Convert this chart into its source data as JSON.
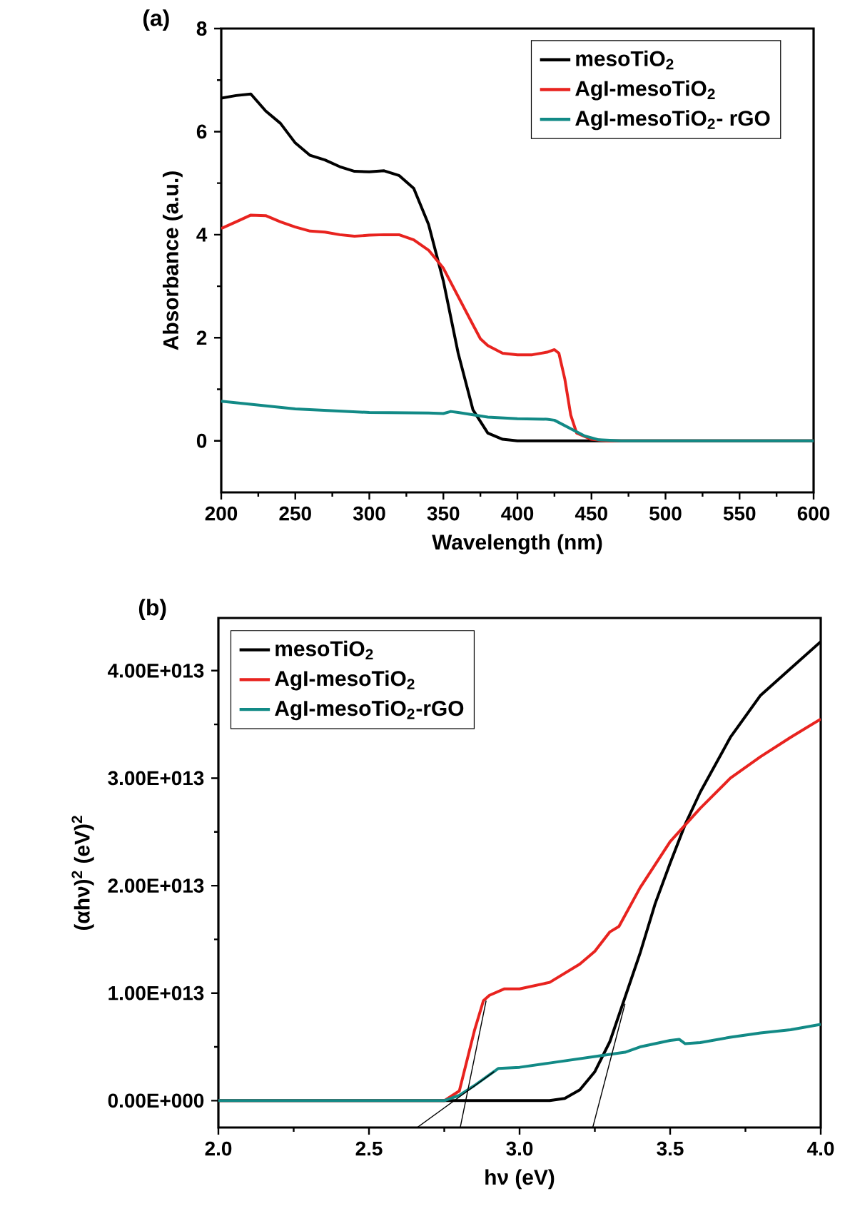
{
  "chart_data": [
    {
      "type": "line",
      "title": "(a)",
      "xlabel": "Wavelength (nm)",
      "ylabel": "Absorbance (a.u.)",
      "xlim": [
        200,
        600
      ],
      "xticks": [
        200,
        250,
        300,
        350,
        400,
        450,
        500,
        550,
        600
      ],
      "ylim": [
        -1,
        8
      ],
      "yticks": [
        0,
        2,
        4,
        6,
        8
      ],
      "legend": "top right",
      "grid": false,
      "marker": "none",
      "line_style": "solid",
      "series": [
        {
          "name": "mesoTiO$_{2}$",
          "color": "#000000",
          "x": [
            200,
            210,
            220,
            230,
            240,
            250,
            260,
            270,
            280,
            290,
            300,
            310,
            320,
            330,
            340,
            350,
            360,
            370,
            380,
            390,
            400,
            600
          ],
          "values": [
            6.65,
            6.7,
            6.73,
            6.4,
            6.16,
            5.78,
            5.54,
            5.45,
            5.32,
            5.23,
            5.22,
            5.24,
            5.15,
            4.9,
            4.2,
            3.1,
            1.7,
            0.6,
            0.15,
            0.03,
            0,
            0
          ]
        },
        {
          "name": "AgI-mesoTiO$_{2}$",
          "color": "#e8231f",
          "x": [
            200,
            210,
            220,
            230,
            240,
            250,
            260,
            270,
            280,
            290,
            300,
            310,
            320,
            330,
            340,
            350,
            360,
            370,
            375,
            380,
            390,
            400,
            410,
            420,
            425,
            428,
            432,
            436,
            440,
            450,
            460,
            600
          ],
          "values": [
            4.12,
            4.25,
            4.38,
            4.37,
            4.25,
            4.15,
            4.07,
            4.05,
            4.0,
            3.97,
            3.99,
            4.0,
            4.0,
            3.9,
            3.7,
            3.35,
            2.8,
            2.25,
            1.98,
            1.85,
            1.7,
            1.67,
            1.67,
            1.72,
            1.77,
            1.7,
            1.2,
            0.5,
            0.15,
            0.03,
            0,
            0
          ]
        },
        {
          "name": "AgI-mesoTiO$_{2}$- rGO",
          "color": "#128a86",
          "x": [
            200,
            250,
            300,
            340,
            350,
            355,
            360,
            380,
            400,
            420,
            425,
            435,
            445,
            455,
            470,
            600
          ],
          "values": [
            0.77,
            0.62,
            0.55,
            0.54,
            0.53,
            0.57,
            0.55,
            0.46,
            0.43,
            0.42,
            0.4,
            0.25,
            0.1,
            0.02,
            0,
            0
          ]
        }
      ]
    },
    {
      "type": "line",
      "title": "(b)",
      "xlabel": "hν (eV)",
      "ylabel": "(αhν)$^{2}$ (eV)$^{2}$",
      "xlim": [
        2.0,
        4.0
      ],
      "xticks": [
        {
          "value": 2.0,
          "label": "2.0"
        },
        {
          "value": 2.5,
          "label": "2.5"
        },
        {
          "value": 3.0,
          "label": "3.0"
        },
        {
          "value": 3.5,
          "label": "3.5"
        },
        {
          "value": 4.0,
          "label": "4.0"
        }
      ],
      "ylim": [
        -2500000000000.0,
        44900000000000.0
      ],
      "yticks": [
        {
          "value": 0,
          "label": "0.00E+000"
        },
        {
          "value": 10000000000000.0,
          "label": "1.00E+013"
        },
        {
          "value": 20000000000000.0,
          "label": "2.00E+013"
        },
        {
          "value": 30000000000000.0,
          "label": "3.00E+013"
        },
        {
          "value": 40000000000000.0,
          "label": "4.00E+013"
        }
      ],
      "legend": "top left",
      "grid": false,
      "marker": "none",
      "line_style": "solid",
      "series": [
        {
          "name": "mesoTiO$_{2}$",
          "color": "#000000",
          "x": [
            2.0,
            2.8,
            3.1,
            3.15,
            3.2,
            3.25,
            3.3,
            3.35,
            3.4,
            3.45,
            3.5,
            3.55,
            3.6,
            3.7,
            3.8,
            3.9,
            4.0
          ],
          "values": [
            0,
            0,
            0,
            200000000000.0,
            1000000000000.0,
            2700000000000.0,
            5500000000000.0,
            9600000000000.0,
            13700000000000.0,
            18300000000000.0,
            22100000000000.0,
            25700000000000.0,
            28700000000000.0,
            33800000000000.0,
            37700000000000.0,
            40200000000000.0,
            42700000000000.0
          ]
        },
        {
          "name": "AgI-mesoTiO$_{2}$",
          "color": "#e8231f",
          "x": [
            2.0,
            2.75,
            2.8,
            2.85,
            2.88,
            2.9,
            2.95,
            3.0,
            3.1,
            3.2,
            3.25,
            3.3,
            3.33,
            3.4,
            3.5,
            3.6,
            3.7,
            3.8,
            3.9,
            4.0
          ],
          "values": [
            0,
            0,
            900000000000.0,
            6500000000000.0,
            9300000000000.0,
            9800000000000.0,
            10400000000000.0,
            10400000000000.0,
            11000000000000.0,
            12700000000000.0,
            13900000000000.0,
            15700000000000.0,
            16200000000000.0,
            19800000000000.0,
            24100000000000.0,
            27200000000000.0,
            30000000000000.0,
            32000000000000.0,
            33800000000000.0,
            35500000000000.0
          ]
        },
        {
          "name": "AgI-mesoTiO$_{2}$-rGO",
          "color": "#128a86",
          "x": [
            2.0,
            2.75,
            2.8,
            2.85,
            2.9,
            2.93,
            3.0,
            3.1,
            3.2,
            3.3,
            3.35,
            3.4,
            3.5,
            3.53,
            3.55,
            3.6,
            3.7,
            3.8,
            3.9,
            4.0
          ],
          "values": [
            0,
            0,
            500000000000.0,
            1400000000000.0,
            2400000000000.0,
            3000000000000.0,
            3100000000000.0,
            3500000000000.0,
            3900000000000.0,
            4300000000000.0,
            4500000000000.0,
            5000000000000.0,
            5600000000000.0,
            5700000000000.0,
            5300000000000.0,
            5400000000000.0,
            5900000000000.0,
            6300000000000.0,
            6600000000000.0,
            7100000000000.0
          ]
        },
        {
          "type": "line",
          "color": "#000000",
          "x": [
            2.66,
            2.916
          ],
          "values": [
            -2500000000000.0,
            2700000000000.0
          ]
        },
        {
          "type": "line",
          "color": "#000000",
          "x": [
            2.803,
            2.889
          ],
          "values": [
            -2500000000000.0,
            9300000000000.0
          ]
        },
        {
          "type": "line",
          "color": "#000000",
          "x": [
            3.243,
            3.35
          ],
          "values": [
            -2500000000000.0,
            9000000000000.0
          ]
        }
      ]
    }
  ]
}
